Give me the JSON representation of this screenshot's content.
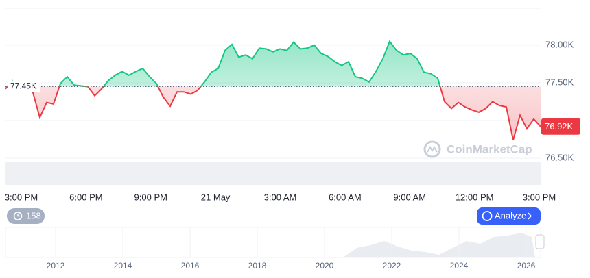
{
  "chart_data": {
    "type": "line",
    "series": [
      {
        "name": "Price",
        "color_up": "#16c784",
        "color_down": "#ea3943",
        "values": [
          77420,
          77530,
          77460,
          77440,
          77370,
          77040,
          77240,
          77220,
          77490,
          77580,
          77470,
          77460,
          77450,
          77330,
          77420,
          77530,
          77600,
          77650,
          77600,
          77650,
          77690,
          77580,
          77490,
          77310,
          77190,
          77380,
          77380,
          77350,
          77400,
          77510,
          77640,
          77690,
          77930,
          78010,
          77840,
          77870,
          77820,
          77960,
          77950,
          77910,
          77950,
          77930,
          78040,
          77950,
          77960,
          78000,
          77890,
          77850,
          77780,
          77730,
          77780,
          77580,
          77560,
          77510,
          77650,
          77820,
          78050,
          77930,
          77870,
          77890,
          77820,
          77640,
          77620,
          77560,
          77250,
          77160,
          77240,
          77180,
          77140,
          77110,
          77160,
          77250,
          77200,
          77180,
          76740,
          77070,
          76890,
          77020,
          76920
        ]
      }
    ],
    "baseline": {
      "value": 77450,
      "label": "77.45K"
    },
    "last_label": "76.92K",
    "ylim": [
      76500,
      78490
    ],
    "yticks": [
      {
        "value": 76500,
        "label": "76.50K"
      },
      {
        "value": 77000,
        "label": ""
      },
      {
        "value": 77500,
        "label": "77.50K"
      },
      {
        "value": 78000,
        "label": "78.00K"
      }
    ],
    "xtick_labels": [
      "3:00 PM",
      "6:00 PM",
      "9:00 PM",
      "21 May",
      "3:00 AM",
      "6:00 AM",
      "9:00 AM",
      "12:00 PM",
      "3:00 PM"
    ],
    "grid": true,
    "watermark": "CoinMarketCap",
    "history_badge": "158",
    "analyze_button": "Analyze",
    "navigator_years": [
      "2012",
      "2014",
      "2016",
      "2018",
      "2020",
      "2022",
      "2024",
      "2026"
    ]
  }
}
